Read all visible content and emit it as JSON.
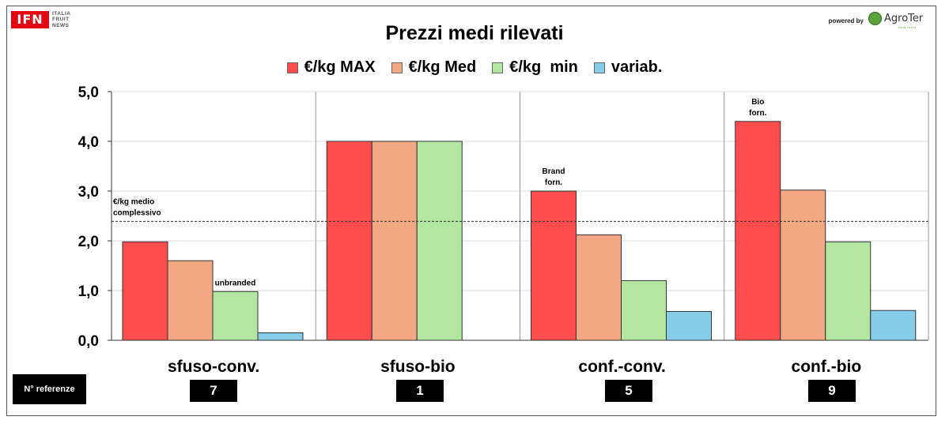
{
  "header": {
    "logo_ifn": {
      "mark": "IFN",
      "tagline": [
        "ITALIA",
        "FRUIT",
        "NEWS"
      ]
    },
    "powered_by": "powered by",
    "logo_agroter": {
      "name": "AgroTer",
      "sub": "food force"
    }
  },
  "colors": {
    "max": "#ff4d4d",
    "med": "#f2a882",
    "min": "#b3e6a1",
    "variab": "#86cdea",
    "ifn_red": "#e30613",
    "agroter_green": "#5aa33a"
  },
  "chart_data": {
    "type": "bar",
    "title": "Prezzi medi rilevati",
    "categories": [
      "sfuso-conv.",
      "sfuso-bio",
      "conf.-conv.",
      "conf.-bio"
    ],
    "series": [
      {
        "name": "€/kg MAX",
        "color": "#ff4d4d",
        "values": [
          1.98,
          4.0,
          3.0,
          4.4
        ]
      },
      {
        "name": "€/kg Med",
        "color": "#f2a882",
        "values": [
          1.6,
          4.0,
          2.12,
          3.02
        ]
      },
      {
        "name": "€/kg  min",
        "color": "#b3e6a1",
        "values": [
          0.98,
          4.0,
          1.2,
          1.98
        ]
      },
      {
        "name": "variab.",
        "color": "#86cdea",
        "values": [
          0.15,
          null,
          0.58,
          0.6
        ]
      }
    ],
    "ylim": [
      0,
      5
    ],
    "yticks": [
      0,
      1,
      2,
      3,
      4,
      5
    ],
    "ytick_labels": [
      "0,0",
      "1,0",
      "2,0",
      "3,0",
      "4,0",
      "5,0"
    ],
    "reference_line": {
      "value": 2.39,
      "label": [
        "€/kg medio",
        "complessivo"
      ]
    },
    "annotations": [
      {
        "category": 0,
        "series": 2,
        "lines": [
          "unbranded"
        ]
      },
      {
        "category": 2,
        "series": 0,
        "lines": [
          "Brand",
          "forn."
        ]
      },
      {
        "category": 3,
        "series": 0,
        "lines": [
          "Bio",
          "forn."
        ]
      }
    ],
    "grid": true,
    "legend_position": "top"
  },
  "references": {
    "label": "N° referenze",
    "counts": [
      "7",
      "1",
      "5",
      "9"
    ]
  }
}
